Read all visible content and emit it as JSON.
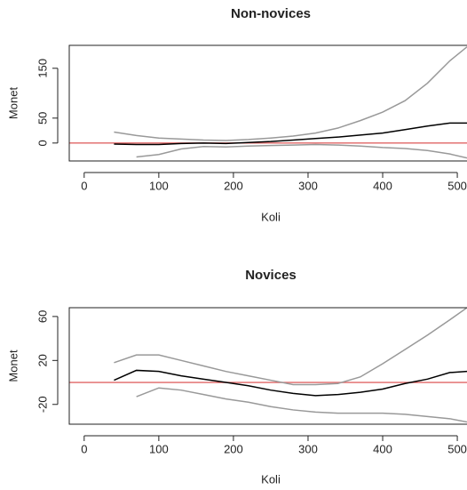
{
  "chart_data": [
    {
      "type": "line",
      "title": "Non-novices",
      "xlabel": "Koli",
      "ylabel": "Monet",
      "x": [
        40,
        70,
        100,
        130,
        160,
        190,
        220,
        250,
        280,
        310,
        340,
        370,
        400,
        430,
        460,
        490,
        513
      ],
      "series": [
        {
          "color": "#999999",
          "values": [
            22,
            15,
            10,
            8,
            6,
            5,
            7,
            10,
            14,
            20,
            30,
            45,
            62,
            85,
            120,
            165,
            193
          ]
        },
        {
          "color": "#999999",
          "values": [
            null,
            -28,
            -23,
            -12,
            -7,
            -8,
            -6,
            -5,
            -4,
            -3,
            -4,
            -6,
            -9,
            -11,
            -15,
            -22,
            -30
          ]
        },
        {
          "color": "#000000",
          "values": [
            -2,
            -3,
            -3,
            -1,
            0,
            -1,
            1,
            3,
            6,
            9,
            12,
            16,
            20,
            27,
            34,
            40,
            40
          ]
        }
      ],
      "hline": 0,
      "hline_color": "#e06666",
      "xlim": [
        -20,
        513
      ],
      "xticks": [
        0,
        100,
        200,
        300,
        400,
        500
      ],
      "ylim": [
        -36,
        196
      ],
      "yticks": [
        0,
        50,
        150
      ]
    },
    {
      "type": "line",
      "title": "Novices",
      "xlabel": "Koli",
      "ylabel": "Monet",
      "x": [
        40,
        70,
        100,
        130,
        160,
        190,
        220,
        250,
        280,
        310,
        340,
        370,
        400,
        430,
        460,
        490,
        513
      ],
      "series": [
        {
          "color": "#999999",
          "values": [
            18,
            25,
            25,
            20,
            15,
            10,
            6,
            2,
            -2,
            -2,
            -1,
            5,
            17,
            30,
            43,
            57,
            68
          ]
        },
        {
          "color": "#999999",
          "values": [
            null,
            -13,
            -5,
            -7,
            -11,
            -15,
            -18,
            -22,
            -25,
            -27,
            -28,
            -28,
            -28,
            -29,
            -31,
            -33,
            -36
          ]
        },
        {
          "color": "#000000",
          "values": [
            2,
            11,
            10,
            6,
            3,
            0,
            -3,
            -7,
            -10,
            -12,
            -11,
            -9,
            -6,
            -1,
            3,
            9,
            10
          ]
        }
      ],
      "hline": 0,
      "hline_color": "#e06666",
      "xlim": [
        -20,
        513
      ],
      "xticks": [
        0,
        100,
        200,
        300,
        400,
        500
      ],
      "ylim": [
        -38,
        68
      ],
      "yticks": [
        -20,
        20,
        60
      ]
    }
  ]
}
